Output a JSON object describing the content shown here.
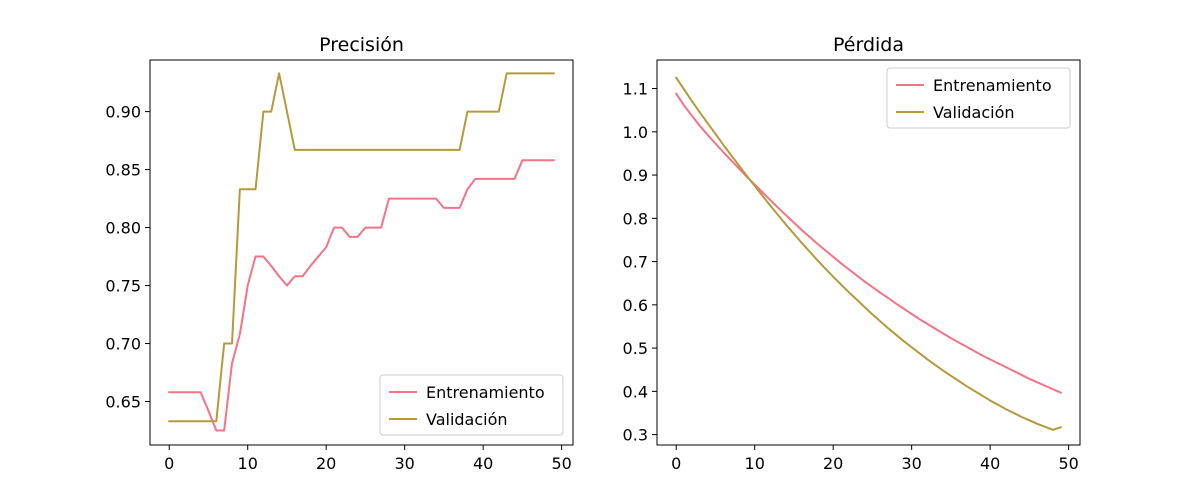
{
  "chart_data": [
    {
      "type": "line",
      "title": "Precisión",
      "xlabel": "",
      "ylabel": "",
      "xlim": [
        -2.45,
        51.45
      ],
      "ylim": [
        0.6125,
        0.9445
      ],
      "xticks": [
        0,
        10,
        20,
        30,
        40,
        50
      ],
      "yticks": [
        0.65,
        0.7,
        0.75,
        0.8,
        0.85,
        0.9
      ],
      "ytick_labels": [
        "0.65",
        "0.70",
        "0.75",
        "0.80",
        "0.85",
        "0.90"
      ],
      "grid": false,
      "legend_position": "lower-right",
      "x": [
        0,
        1,
        2,
        3,
        4,
        5,
        6,
        7,
        8,
        9,
        10,
        11,
        12,
        13,
        14,
        15,
        16,
        17,
        18,
        19,
        20,
        21,
        22,
        23,
        24,
        25,
        26,
        27,
        28,
        29,
        30,
        31,
        32,
        33,
        34,
        35,
        36,
        37,
        38,
        39,
        40,
        41,
        42,
        43,
        44,
        45,
        46,
        47,
        48,
        49
      ],
      "series": [
        {
          "name": "Entrenamiento",
          "color": "#f37387",
          "values": [
            0.658,
            0.658,
            0.658,
            0.658,
            0.658,
            0.642,
            0.625,
            0.625,
            0.683,
            0.708,
            0.75,
            0.775,
            0.775,
            0.767,
            0.758,
            0.75,
            0.758,
            0.758,
            0.767,
            0.775,
            0.783,
            0.8,
            0.8,
            0.792,
            0.792,
            0.8,
            0.8,
            0.8,
            0.825,
            0.825,
            0.825,
            0.825,
            0.825,
            0.825,
            0.825,
            0.817,
            0.817,
            0.817,
            0.833,
            0.842,
            0.842,
            0.842,
            0.842,
            0.842,
            0.842,
            0.858,
            0.858,
            0.858,
            0.858,
            0.858
          ]
        },
        {
          "name": "Validación",
          "color": "#b59a3a",
          "values": [
            0.633,
            0.633,
            0.633,
            0.633,
            0.633,
            0.633,
            0.633,
            0.7,
            0.7,
            0.833,
            0.833,
            0.833,
            0.9,
            0.9,
            0.933,
            0.9,
            0.867,
            0.867,
            0.867,
            0.867,
            0.867,
            0.867,
            0.867,
            0.867,
            0.867,
            0.867,
            0.867,
            0.867,
            0.867,
            0.867,
            0.867,
            0.867,
            0.867,
            0.867,
            0.867,
            0.867,
            0.867,
            0.867,
            0.9,
            0.9,
            0.9,
            0.9,
            0.9,
            0.933,
            0.933,
            0.933,
            0.933,
            0.933,
            0.933,
            0.933
          ]
        }
      ]
    },
    {
      "type": "line",
      "title": "Pérdida",
      "xlabel": "",
      "ylabel": "",
      "xlim": [
        -2.45,
        51.45
      ],
      "ylim": [
        0.276,
        1.166
      ],
      "xticks": [
        0,
        10,
        20,
        30,
        40,
        50
      ],
      "yticks": [
        0.3,
        0.4,
        0.5,
        0.6,
        0.7,
        0.8,
        0.9,
        1.0,
        1.1
      ],
      "ytick_labels": [
        "0.3",
        "0.4",
        "0.5",
        "0.6",
        "0.7",
        "0.8",
        "0.9",
        "1.0",
        "1.1"
      ],
      "grid": false,
      "legend_position": "upper-right",
      "x": [
        0,
        1,
        2,
        3,
        4,
        5,
        6,
        7,
        8,
        9,
        10,
        11,
        12,
        13,
        14,
        15,
        16,
        17,
        18,
        19,
        20,
        21,
        22,
        23,
        24,
        25,
        26,
        27,
        28,
        29,
        30,
        31,
        32,
        33,
        34,
        35,
        36,
        37,
        38,
        39,
        40,
        41,
        42,
        43,
        44,
        45,
        46,
        47,
        48,
        49
      ],
      "series": [
        {
          "name": "Entrenamiento",
          "color": "#f37387",
          "values": [
            1.088,
            1.061,
            1.037,
            1.014,
            0.993,
            0.973,
            0.953,
            0.934,
            0.915,
            0.896,
            0.878,
            0.86,
            0.842,
            0.824,
            0.807,
            0.79,
            0.773,
            0.757,
            0.741,
            0.726,
            0.711,
            0.696,
            0.682,
            0.668,
            0.654,
            0.641,
            0.628,
            0.616,
            0.603,
            0.591,
            0.579,
            0.567,
            0.556,
            0.545,
            0.534,
            0.523,
            0.513,
            0.503,
            0.493,
            0.483,
            0.474,
            0.465,
            0.456,
            0.447,
            0.438,
            0.429,
            0.421,
            0.413,
            0.405,
            0.397
          ]
        },
        {
          "name": "Validación",
          "color": "#b59a3a",
          "values": [
            1.125,
            1.098,
            1.071,
            1.045,
            1.02,
            0.995,
            0.97,
            0.946,
            0.922,
            0.898,
            0.875,
            0.852,
            0.829,
            0.807,
            0.785,
            0.764,
            0.743,
            0.723,
            0.703,
            0.684,
            0.665,
            0.647,
            0.629,
            0.612,
            0.595,
            0.578,
            0.562,
            0.546,
            0.531,
            0.516,
            0.502,
            0.488,
            0.474,
            0.461,
            0.448,
            0.436,
            0.424,
            0.412,
            0.401,
            0.39,
            0.379,
            0.369,
            0.359,
            0.35,
            0.341,
            0.333,
            0.325,
            0.318,
            0.311,
            0.317
          ]
        }
      ]
    }
  ]
}
